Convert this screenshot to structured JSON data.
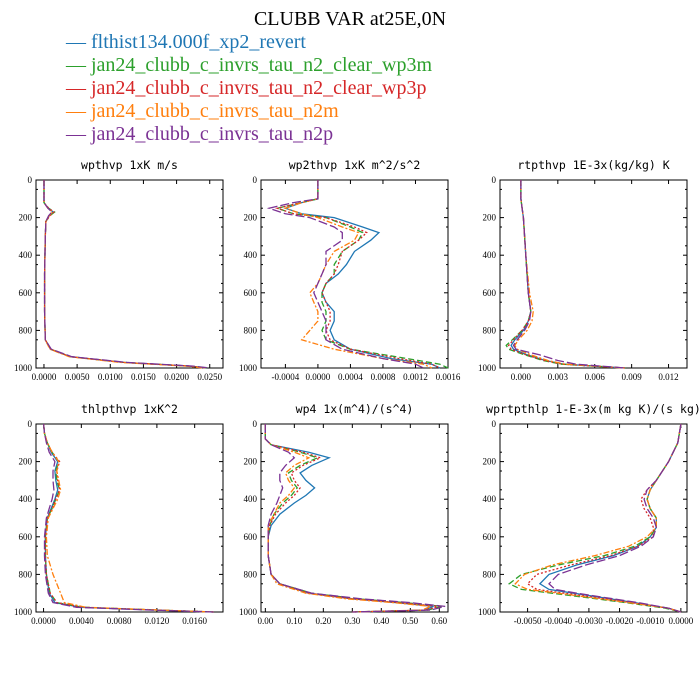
{
  "title": "CLUBB VAR at25E,0N",
  "legend": [
    {
      "label": "flthist134.000f_xp2_revert",
      "color": "#1f77b4",
      "dash": "solid"
    },
    {
      "label": "jan24_clubb_c_invrs_tau_n2_clear_wp3m",
      "color": "#2ca02c",
      "dash": "dash"
    },
    {
      "label": "jan24_clubb_c_invrs_tau_n2_clear_wp3p",
      "color": "#d62728",
      "dash": "dot"
    },
    {
      "label": "jan24_clubb_c_invrs_tau_n2m",
      "color": "#ff7f0e",
      "dash": "dashdot"
    },
    {
      "label": "jan24_clubb_c_invrs_tau_n2p",
      "color": "#7b3294",
      "dash": "longdash"
    }
  ],
  "chart_data": [
    {
      "type": "line",
      "title": "wpthvp  1xK m/s",
      "xlim": [
        -0.0012,
        0.027
      ],
      "xticks": [
        "0.0000",
        "0.0050",
        "0.0100",
        "0.0150",
        "0.0200",
        "0.0250"
      ],
      "xtick_values": [
        0,
        0.005,
        0.01,
        0.015,
        0.02,
        0.025
      ],
      "ylim": [
        0,
        1000
      ],
      "yticks": [
        "0",
        "200",
        "400",
        "600",
        "800",
        "1000"
      ],
      "y": [
        0,
        120,
        150,
        170,
        190,
        220,
        300,
        500,
        700,
        850,
        900,
        940,
        970,
        990,
        1000
      ],
      "series": [
        {
          "values": [
            0,
            0,
            0.0006,
            0.0014,
            0.0008,
            0.0003,
            0.0002,
            0.0001,
            0.0001,
            0.0002,
            0.001,
            0.004,
            0.012,
            0.022,
            0.0245
          ]
        },
        {
          "values": [
            0,
            0,
            0.0007,
            0.0016,
            0.0009,
            0.0003,
            0.0002,
            0.0001,
            0.0001,
            0.0002,
            0.001,
            0.004,
            0.012,
            0.022,
            0.0245
          ]
        },
        {
          "values": [
            0,
            0,
            0.0007,
            0.0015,
            0.0009,
            0.0003,
            0.0002,
            0.0001,
            0.0001,
            0.0002,
            0.001,
            0.004,
            0.012,
            0.022,
            0.0245
          ]
        },
        {
          "values": [
            0,
            0,
            0.0006,
            0.0013,
            0.0008,
            0.0003,
            0.0002,
            0.0001,
            0.0001,
            0.0002,
            0.0009,
            0.0038,
            0.0115,
            0.0215,
            0.024
          ]
        },
        {
          "values": [
            0,
            0,
            0.0006,
            0.0012,
            0.0007,
            0.0003,
            0.0002,
            0.0001,
            0.0001,
            0.0002,
            0.0011,
            0.0042,
            0.0125,
            0.0225,
            0.025
          ]
        }
      ]
    },
    {
      "type": "line",
      "title": "wp2thvp  1xK m^2/s^2",
      "xlim": [
        -0.0007,
        0.0016
      ],
      "xticks": [
        "-0.0004",
        "0.0000",
        "0.0004",
        "0.0008",
        "0.0012",
        "0.0016"
      ],
      "xtick_values": [
        -0.0004,
        0,
        0.0004,
        0.0008,
        0.0012,
        0.0016
      ],
      "ylim": [
        0,
        1000
      ],
      "yticks": [
        "0",
        "200",
        "400",
        "600",
        "800",
        "1000"
      ],
      "y": [
        0,
        100,
        120,
        150,
        180,
        200,
        250,
        280,
        320,
        380,
        450,
        500,
        550,
        600,
        650,
        700,
        750,
        800,
        850,
        900,
        950,
        980,
        1000
      ],
      "series": [
        {
          "values": [
            0,
            0,
            -0.0002,
            -0.0004,
            -0.0002,
            0.0002,
            0.00055,
            0.00075,
            0.00065,
            0.00045,
            0.00035,
            0.00025,
            0.0001,
            5e-05,
            0.0001,
            0.0002,
            0.0002,
            0.00015,
            0.0002,
            0.0004,
            0.0009,
            0.0014,
            0.0015
          ]
        },
        {
          "values": [
            0,
            0,
            -0.0002,
            -0.0005,
            -0.0003,
            0.0001,
            0.0004,
            0.00055,
            0.0005,
            0.0003,
            0.0002,
            0.0002,
            0.0001,
            5e-05,
            5e-05,
            0.0001,
            0.0001,
            5e-05,
            0.0001,
            0.0004,
            0.0011,
            0.0015,
            0.0016
          ]
        },
        {
          "values": [
            0,
            0,
            -0.0002,
            -0.0005,
            -0.0003,
            0.0001,
            0.00045,
            0.0006,
            0.0005,
            0.0003,
            0.00025,
            0.0002,
            0.0001,
            5e-05,
            0.0001,
            0.00015,
            0.00015,
            0.0001,
            0.00015,
            0.0004,
            0.001,
            0.0014,
            0.0015
          ]
        },
        {
          "values": [
            0,
            0,
            -0.0002,
            -0.0004,
            -0.0002,
            0.0,
            0.0003,
            0.0005,
            0.00045,
            0.0002,
            0.0001,
            5e-05,
            0.0,
            -0.0001,
            -5e-05,
            0.0,
            0.0,
            -0.0001,
            -0.0002,
            0.0002,
            0.0008,
            0.0013,
            0.0014
          ]
        },
        {
          "values": [
            0,
            0,
            -0.0003,
            -0.0006,
            -0.0004,
            -0.0001,
            0.0002,
            0.0003,
            0.0003,
            0.0001,
            0.0001,
            5e-05,
            0.0,
            -5e-05,
            0.0,
            5e-05,
            0.0001,
            0.0001,
            0.0001,
            0.0003,
            0.0008,
            0.0012,
            0.0013
          ]
        }
      ]
    },
    {
      "type": "line",
      "title": "rtpthvp  1E-3x(kg/kg) K",
      "xlim": [
        -0.0017,
        0.0135
      ],
      "xticks": [
        "0.000",
        "0.003",
        "0.006",
        "0.009",
        "0.012"
      ],
      "xtick_values": [
        0,
        0.003,
        0.006,
        0.009,
        0.012
      ],
      "ylim": [
        0,
        1000
      ],
      "yticks": [
        "0",
        "200",
        "400",
        "600",
        "800",
        "1000"
      ],
      "y": [
        0,
        100,
        150,
        200,
        400,
        600,
        700,
        750,
        800,
        850,
        880,
        900,
        930,
        960,
        980,
        1000
      ],
      "series": [
        {
          "values": [
            0,
            0,
            0.0001,
            0.0002,
            0.0004,
            0.0006,
            0.0008,
            0.0006,
            0.0002,
            -0.0005,
            -0.0008,
            -0.0006,
            0.0005,
            0.002,
            0.0035,
            0.0085
          ]
        },
        {
          "values": [
            0,
            0,
            0.0001,
            0.0002,
            0.0004,
            0.0006,
            0.0008,
            0.0006,
            0.0001,
            -0.0007,
            -0.0012,
            -0.001,
            0.0003,
            0.0018,
            0.0033,
            0.0085
          ]
        },
        {
          "values": [
            0,
            0,
            0.0001,
            0.0002,
            0.0004,
            0.0006,
            0.0008,
            0.0006,
            0.0001,
            -0.0006,
            -0.001,
            -0.0008,
            0.0004,
            0.0019,
            0.0034,
            0.0085
          ]
        },
        {
          "values": [
            0,
            0,
            0.0001,
            0.0002,
            0.0004,
            0.0007,
            0.001,
            0.0009,
            0.0005,
            -0.0002,
            -0.0005,
            -0.0003,
            0.0008,
            0.0022,
            0.0036,
            0.0085
          ]
        },
        {
          "values": [
            0,
            0,
            0.0001,
            0.0002,
            0.0004,
            0.0006,
            0.0008,
            0.0007,
            0.0003,
            -0.0003,
            -0.0006,
            -0.0004,
            0.0015,
            0.003,
            0.0045,
            0.0085
          ]
        }
      ]
    },
    {
      "type": "line",
      "title": "thlpthvp  1xK^2",
      "xlim": [
        -0.0008,
        0.019
      ],
      "xticks": [
        "0.0000",
        "0.0040",
        "0.0080",
        "0.0120",
        "0.0160"
      ],
      "xtick_values": [
        0,
        0.004,
        0.008,
        0.012,
        0.016
      ],
      "ylim": [
        0,
        1000
      ],
      "yticks": [
        "0",
        "200",
        "400",
        "600",
        "800",
        "1000"
      ],
      "y": [
        0,
        50,
        100,
        150,
        200,
        250,
        300,
        350,
        400,
        450,
        500,
        600,
        700,
        800,
        900,
        950,
        975,
        990,
        1000
      ],
      "series": [
        {
          "values": [
            0,
            0.0001,
            0.0004,
            0.0008,
            0.0015,
            0.0012,
            0.0013,
            0.0015,
            0.0012,
            0.0008,
            0.0004,
            0.0002,
            0.0002,
            0.0003,
            0.0006,
            0.0012,
            0.004,
            0.012,
            0.018
          ]
        },
        {
          "values": [
            0,
            0.0001,
            0.0004,
            0.0009,
            0.0016,
            0.0013,
            0.0014,
            0.0017,
            0.0013,
            0.0009,
            0.0004,
            0.0002,
            0.0002,
            0.0003,
            0.0007,
            0.0014,
            0.0042,
            0.0122,
            0.018
          ]
        },
        {
          "values": [
            0,
            0.0001,
            0.0004,
            0.0009,
            0.0017,
            0.0014,
            0.0015,
            0.0017,
            0.0013,
            0.0009,
            0.0004,
            0.0002,
            0.0002,
            0.0003,
            0.0007,
            0.0014,
            0.0042,
            0.0122,
            0.018
          ]
        },
        {
          "values": [
            0,
            0.0001,
            0.0004,
            0.0009,
            0.0016,
            0.0014,
            0.0016,
            0.0018,
            0.0015,
            0.001,
            0.0005,
            0.0003,
            0.0004,
            0.001,
            0.0018,
            0.0022,
            0.0045,
            0.0125,
            0.018
          ]
        },
        {
          "values": [
            0,
            0.0001,
            0.0003,
            0.0006,
            0.0012,
            0.001,
            0.001,
            0.0011,
            0.0009,
            0.0006,
            0.0003,
            0.0001,
            0.0001,
            0.0002,
            0.0005,
            0.001,
            0.0035,
            0.0115,
            0.018
          ]
        }
      ]
    },
    {
      "type": "line",
      "title": "wp4  1x(m^4)/(s^4)",
      "xlim": [
        -0.015,
        0.63
      ],
      "xticks": [
        "0.00",
        "0.10",
        "0.20",
        "0.30",
        "0.40",
        "0.50",
        "0.60"
      ],
      "xtick_values": [
        0,
        0.1,
        0.2,
        0.3,
        0.4,
        0.5,
        0.6
      ],
      "ylim": [
        0,
        1000
      ],
      "yticks": [
        "0",
        "200",
        "400",
        "600",
        "800",
        "1000"
      ],
      "y": [
        0,
        80,
        110,
        150,
        180,
        220,
        260,
        300,
        340,
        380,
        420,
        480,
        540,
        600,
        700,
        800,
        850,
        900,
        930,
        950,
        970,
        990,
        1000
      ],
      "series": [
        {
          "values": [
            0,
            0,
            0.02,
            0.15,
            0.22,
            0.16,
            0.12,
            0.14,
            0.17,
            0.14,
            0.1,
            0.05,
            0.02,
            0.01,
            0.01,
            0.02,
            0.05,
            0.15,
            0.3,
            0.45,
            0.58,
            0.55,
            0.3
          ]
        },
        {
          "values": [
            0,
            0,
            0.02,
            0.12,
            0.18,
            0.12,
            0.08,
            0.09,
            0.11,
            0.09,
            0.06,
            0.03,
            0.015,
            0.01,
            0.01,
            0.02,
            0.05,
            0.16,
            0.32,
            0.48,
            0.61,
            0.56,
            0.3
          ]
        },
        {
          "values": [
            0,
            0,
            0.02,
            0.13,
            0.19,
            0.13,
            0.09,
            0.1,
            0.12,
            0.1,
            0.07,
            0.035,
            0.015,
            0.01,
            0.01,
            0.02,
            0.05,
            0.15,
            0.3,
            0.46,
            0.6,
            0.55,
            0.3
          ]
        },
        {
          "values": [
            0,
            0,
            0.02,
            0.1,
            0.15,
            0.1,
            0.07,
            0.08,
            0.1,
            0.08,
            0.05,
            0.03,
            0.01,
            0.01,
            0.01,
            0.02,
            0.04,
            0.14,
            0.28,
            0.44,
            0.57,
            0.54,
            0.3
          ]
        },
        {
          "values": [
            0,
            0,
            0.02,
            0.08,
            0.1,
            0.07,
            0.05,
            0.05,
            0.06,
            0.05,
            0.04,
            0.02,
            0.01,
            0.01,
            0.01,
            0.02,
            0.05,
            0.16,
            0.33,
            0.5,
            0.62,
            0.57,
            0.3
          ]
        }
      ]
    },
    {
      "type": "line",
      "title": "wprtpthlp  1-E-3x(m kg K)/(s kg)",
      "xlim": [
        -0.0059,
        0.0002
      ],
      "xticks": [
        "-0.0050",
        "-0.0040",
        "-0.0030",
        "-0.0020",
        "-0.0010",
        "0.0000"
      ],
      "xtick_values": [
        -0.005,
        -0.004,
        -0.003,
        -0.002,
        -0.001,
        0
      ],
      "ylim": [
        0,
        1000
      ],
      "yticks": [
        "0",
        "200",
        "400",
        "600",
        "800",
        "1000"
      ],
      "y": [
        0,
        100,
        200,
        300,
        350,
        400,
        450,
        500,
        550,
        600,
        650,
        700,
        750,
        800,
        850,
        880,
        900,
        950,
        980,
        1000
      ],
      "series": [
        {
          "values": [
            0,
            -0.0001,
            -0.0004,
            -0.0008,
            -0.001,
            -0.0011,
            -0.001,
            -0.0008,
            -0.0008,
            -0.001,
            -0.0014,
            -0.0022,
            -0.0034,
            -0.0043,
            -0.0046,
            -0.0043,
            -0.0035,
            -0.0015,
            -0.0004,
            0
          ]
        },
        {
          "values": [
            0,
            -0.0001,
            -0.0004,
            -0.0008,
            -0.001,
            -0.0011,
            -0.001,
            -0.0008,
            -0.0008,
            -0.001,
            -0.0015,
            -0.0025,
            -0.004,
            -0.0052,
            -0.0056,
            -0.0052,
            -0.0042,
            -0.0018,
            -0.0005,
            0
          ]
        },
        {
          "values": [
            0,
            -0.0001,
            -0.0004,
            -0.0008,
            -0.0011,
            -0.0013,
            -0.0012,
            -0.001,
            -0.0009,
            -0.0009,
            -0.0014,
            -0.0023,
            -0.0036,
            -0.0047,
            -0.005,
            -0.0047,
            -0.0038,
            -0.0016,
            -0.0004,
            0
          ]
        },
        {
          "values": [
            0,
            -0.0001,
            -0.0004,
            -0.0008,
            -0.001,
            -0.0011,
            -0.001,
            -0.0008,
            -0.0008,
            -0.0011,
            -0.0017,
            -0.0028,
            -0.0042,
            -0.0051,
            -0.0054,
            -0.005,
            -0.004,
            -0.0017,
            -0.0004,
            0
          ]
        },
        {
          "values": [
            0,
            -0.0001,
            -0.0004,
            -0.0008,
            -0.0011,
            -0.0012,
            -0.0011,
            -0.0009,
            -0.0008,
            -0.0009,
            -0.0013,
            -0.002,
            -0.0031,
            -0.004,
            -0.0043,
            -0.0041,
            -0.0034,
            -0.0014,
            -0.0004,
            0
          ]
        }
      ]
    }
  ]
}
